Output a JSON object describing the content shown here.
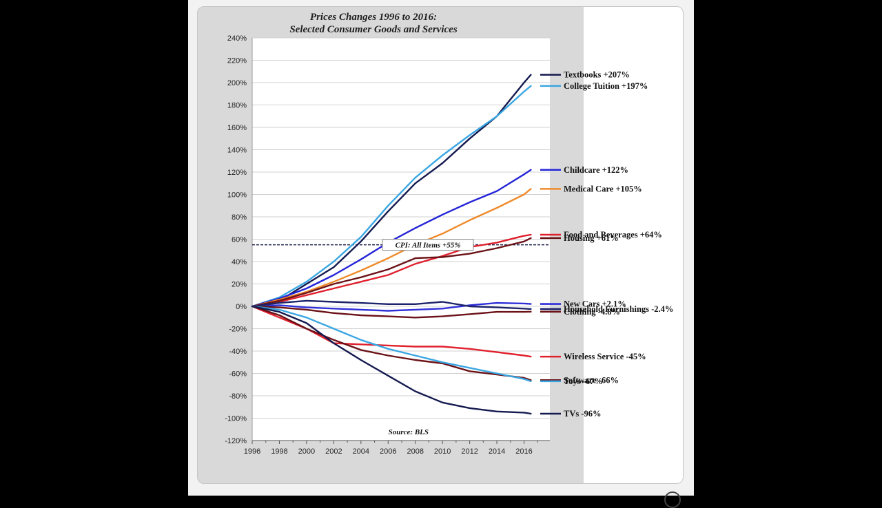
{
  "chart_data": {
    "type": "line",
    "title": "Prices Changes 1996 to 2016:",
    "subtitle": "Selected Consumer Goods and Services",
    "source": "Source: BLS",
    "xlim": [
      1996,
      2017.9
    ],
    "ylim": [
      -120,
      240
    ],
    "x_ticks": [
      "1996",
      "1998",
      "2000",
      "2002",
      "2004",
      "2006",
      "2008",
      "2010",
      "2012",
      "2014",
      "2016"
    ],
    "y_ticks": [
      "240%",
      "220%",
      "200%",
      "180%",
      "160%",
      "140%",
      "120%",
      "100%",
      "80%",
      "60%",
      "40%",
      "20%",
      "0%",
      "-20%",
      "-40%",
      "-60%",
      "-80%",
      "-100%",
      "-120%"
    ],
    "grid": "horizontal",
    "reference_line": {
      "label": "CPI: All Items +55%",
      "value": 55,
      "style": "dashed",
      "color": "#1b1f4a"
    },
    "series": [
      {
        "name": "Textbooks +207%",
        "color": "#141a4f",
        "label_y": 207,
        "points": [
          [
            1996,
            0
          ],
          [
            1998,
            5
          ],
          [
            2000,
            20
          ],
          [
            2002,
            35
          ],
          [
            2004,
            58
          ],
          [
            2006,
            85
          ],
          [
            2008,
            110
          ],
          [
            2010,
            128
          ],
          [
            2012,
            150
          ],
          [
            2014,
            170
          ],
          [
            2016,
            200
          ],
          [
            2016.5,
            207
          ]
        ]
      },
      {
        "name": "College Tuition +197%",
        "color": "#3aa6e2",
        "label_y": 197,
        "points": [
          [
            1996,
            0
          ],
          [
            1998,
            8
          ],
          [
            2000,
            22
          ],
          [
            2002,
            40
          ],
          [
            2004,
            62
          ],
          [
            2006,
            90
          ],
          [
            2008,
            115
          ],
          [
            2010,
            135
          ],
          [
            2012,
            153
          ],
          [
            2014,
            170
          ],
          [
            2016,
            192
          ],
          [
            2016.5,
            197
          ]
        ]
      },
      {
        "name": "Childcare +122%",
        "color": "#2424d8",
        "label_y": 122,
        "points": [
          [
            1996,
            0
          ],
          [
            1998,
            7
          ],
          [
            2000,
            16
          ],
          [
            2002,
            28
          ],
          [
            2004,
            42
          ],
          [
            2006,
            57
          ],
          [
            2008,
            70
          ],
          [
            2010,
            82
          ],
          [
            2012,
            93
          ],
          [
            2014,
            103
          ],
          [
            2016,
            118
          ],
          [
            2016.5,
            122
          ]
        ]
      },
      {
        "name": "Medical Care +105%",
        "color": "#ef8a2a",
        "label_y": 105,
        "points": [
          [
            1996,
            0
          ],
          [
            1998,
            6
          ],
          [
            2000,
            13
          ],
          [
            2002,
            22
          ],
          [
            2004,
            32
          ],
          [
            2006,
            43
          ],
          [
            2008,
            55
          ],
          [
            2010,
            65
          ],
          [
            2012,
            77
          ],
          [
            2014,
            88
          ],
          [
            2016,
            100
          ],
          [
            2016.5,
            105
          ]
        ]
      },
      {
        "name": "Food and Beverages +64%",
        "color": "#e0202d",
        "label_y": 64,
        "points": [
          [
            1996,
            0
          ],
          [
            1998,
            4
          ],
          [
            2000,
            10
          ],
          [
            2002,
            16
          ],
          [
            2004,
            22
          ],
          [
            2006,
            28
          ],
          [
            2008,
            38
          ],
          [
            2010,
            45
          ],
          [
            2012,
            53
          ],
          [
            2014,
            57
          ],
          [
            2016,
            63
          ],
          [
            2016.5,
            64
          ]
        ]
      },
      {
        "name": "Housing +61%",
        "color": "#6b1217",
        "label_y": 61,
        "points": [
          [
            1996,
            0
          ],
          [
            1998,
            5
          ],
          [
            2000,
            12
          ],
          [
            2002,
            20
          ],
          [
            2004,
            26
          ],
          [
            2006,
            33
          ],
          [
            2008,
            43
          ],
          [
            2010,
            44
          ],
          [
            2012,
            47
          ],
          [
            2014,
            52
          ],
          [
            2016,
            58
          ],
          [
            2016.5,
            61
          ]
        ]
      },
      {
        "name": "New Cars +2.1%",
        "color": "#2f2fd9",
        "label_y": 2.1,
        "points": [
          [
            1996,
            0
          ],
          [
            1998,
            1
          ],
          [
            2000,
            -1
          ],
          [
            2002,
            -2
          ],
          [
            2004,
            -3
          ],
          [
            2006,
            -4
          ],
          [
            2008,
            -3
          ],
          [
            2010,
            -2
          ],
          [
            2012,
            1
          ],
          [
            2014,
            3
          ],
          [
            2016,
            2.5
          ],
          [
            2016.5,
            2.1
          ]
        ]
      },
      {
        "name": "Household Furnishings -2.4%",
        "color": "#1c2369",
        "label_y": -2.4,
        "points": [
          [
            1996,
            0
          ],
          [
            1998,
            3
          ],
          [
            2000,
            5
          ],
          [
            2002,
            4
          ],
          [
            2004,
            3
          ],
          [
            2006,
            2
          ],
          [
            2008,
            2
          ],
          [
            2010,
            4
          ],
          [
            2012,
            0
          ],
          [
            2014,
            -1
          ],
          [
            2016,
            -2
          ],
          [
            2016.5,
            -2.4
          ]
        ]
      },
      {
        "name": "Clothing -4.8%",
        "color": "#6b1217",
        "label_y": -4.8,
        "points": [
          [
            1996,
            0
          ],
          [
            1998,
            -1
          ],
          [
            2000,
            -3
          ],
          [
            2002,
            -6
          ],
          [
            2004,
            -8
          ],
          [
            2006,
            -9
          ],
          [
            2008,
            -10
          ],
          [
            2010,
            -9
          ],
          [
            2012,
            -7
          ],
          [
            2014,
            -5
          ],
          [
            2016,
            -5
          ],
          [
            2016.5,
            -4.8
          ]
        ]
      },
      {
        "name": "Wireless Service -45%",
        "color": "#e0202d",
        "label_y": -45,
        "points": [
          [
            1996,
            0
          ],
          [
            1998,
            -10
          ],
          [
            2000,
            -20
          ],
          [
            2002,
            -33
          ],
          [
            2004,
            -34
          ],
          [
            2006,
            -35
          ],
          [
            2008,
            -36
          ],
          [
            2010,
            -36
          ],
          [
            2012,
            -38
          ],
          [
            2014,
            -41
          ],
          [
            2016,
            -44
          ],
          [
            2016.5,
            -45
          ]
        ]
      },
      {
        "name": "Software -66%",
        "color": "#6b1217",
        "label_y": -66,
        "points": [
          [
            1996,
            0
          ],
          [
            1998,
            -8
          ],
          [
            2000,
            -20
          ],
          [
            2002,
            -30
          ],
          [
            2004,
            -39
          ],
          [
            2006,
            -44
          ],
          [
            2008,
            -48
          ],
          [
            2010,
            -51
          ],
          [
            2012,
            -58
          ],
          [
            2014,
            -61
          ],
          [
            2016,
            -64
          ],
          [
            2016.5,
            -66
          ]
        ]
      },
      {
        "name": "Toys -67%",
        "color": "#3aa6e2",
        "label_y": -67,
        "points": [
          [
            1996,
            0
          ],
          [
            1998,
            -3
          ],
          [
            2000,
            -10
          ],
          [
            2002,
            -20
          ],
          [
            2004,
            -30
          ],
          [
            2006,
            -38
          ],
          [
            2008,
            -44
          ],
          [
            2010,
            -50
          ],
          [
            2012,
            -55
          ],
          [
            2014,
            -60
          ],
          [
            2016,
            -65
          ],
          [
            2016.5,
            -67
          ]
        ]
      },
      {
        "name": "TVs -96%",
        "color": "#141a4f",
        "label_y": -96,
        "points": [
          [
            1996,
            0
          ],
          [
            1998,
            -5
          ],
          [
            2000,
            -15
          ],
          [
            2002,
            -33
          ],
          [
            2004,
            -48
          ],
          [
            2006,
            -62
          ],
          [
            2008,
            -76
          ],
          [
            2010,
            -86
          ],
          [
            2012,
            -91
          ],
          [
            2014,
            -94
          ],
          [
            2016,
            -95
          ],
          [
            2016.5,
            -96
          ]
        ]
      }
    ]
  }
}
